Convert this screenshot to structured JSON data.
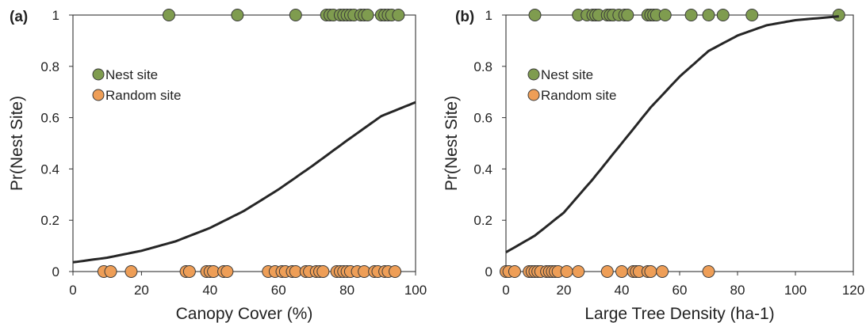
{
  "chart_data": [
    {
      "type": "scatter",
      "panel_label": "(a)",
      "xlabel": "Canopy Cover (%)",
      "ylabel": "Pr(Nest Site)",
      "xlim": [
        0,
        100
      ],
      "ylim": [
        0,
        1
      ],
      "xticks": [
        "0",
        "20",
        "40",
        "60",
        "80",
        "100"
      ],
      "yticks": [
        "0",
        "0.2",
        "0.4",
        "0.6",
        "0.8",
        "1"
      ],
      "grid": false,
      "legend_position": "top-left",
      "series": [
        {
          "name": "Nest site",
          "color": "#7f9c4f",
          "y": 1,
          "x": [
            28,
            48,
            65,
            74,
            75,
            76,
            78,
            79,
            80,
            81,
            82,
            84,
            85,
            86,
            90,
            91,
            92,
            93,
            95
          ]
        },
        {
          "name": "Random site",
          "color": "#ee9e57",
          "y": 0,
          "x": [
            9,
            11,
            17,
            33,
            34,
            39,
            40,
            41,
            44,
            45,
            57,
            59,
            61,
            62,
            64,
            65,
            68,
            69,
            71,
            72,
            73,
            77,
            78,
            79,
            80,
            81,
            83,
            85,
            88,
            89,
            91,
            92,
            94
          ]
        },
        {
          "name": "",
          "type": "line",
          "color": "#262626",
          "x": [
            0,
            10,
            20,
            30,
            40,
            50,
            60,
            70,
            80,
            90,
            100
          ],
          "y": [
            0.036,
            0.054,
            0.081,
            0.118,
            0.17,
            0.237,
            0.32,
            0.413,
            0.511,
            0.606,
            0.66
          ]
        }
      ]
    },
    {
      "type": "scatter",
      "panel_label": "(b)",
      "xlabel": "Large Tree Density (ha-1)",
      "ylabel": "Pr(Nest Site)",
      "xlim": [
        0,
        120
      ],
      "ylim": [
        0,
        1
      ],
      "xticks": [
        "0",
        "20",
        "40",
        "60",
        "80",
        "100",
        "120"
      ],
      "yticks": [
        "0",
        "0.2",
        "0.4",
        "0.6",
        "0.8",
        "1"
      ],
      "grid": false,
      "legend_position": "top-left",
      "series": [
        {
          "name": "Nest site",
          "color": "#7f9c4f",
          "y": 1,
          "x": [
            10,
            25,
            28,
            30,
            31,
            32,
            35,
            36,
            37,
            39,
            41,
            42,
            49,
            50,
            51,
            52,
            55,
            64,
            70,
            75,
            85,
            115
          ]
        },
        {
          "name": "Random site",
          "color": "#ee9e57",
          "y": 0,
          "x": [
            0,
            1,
            3,
            8,
            9,
            10,
            11,
            12,
            14,
            15,
            16,
            17,
            18,
            21,
            25,
            35,
            40,
            44,
            45,
            46,
            49,
            50,
            54,
            70
          ]
        },
        {
          "name": "",
          "type": "line",
          "color": "#262626",
          "x": [
            0,
            10,
            20,
            30,
            40,
            50,
            60,
            70,
            80,
            90,
            100,
            115
          ],
          "y": [
            0.075,
            0.14,
            0.23,
            0.36,
            0.5,
            0.64,
            0.76,
            0.86,
            0.92,
            0.96,
            0.98,
            0.995
          ]
        }
      ]
    }
  ]
}
